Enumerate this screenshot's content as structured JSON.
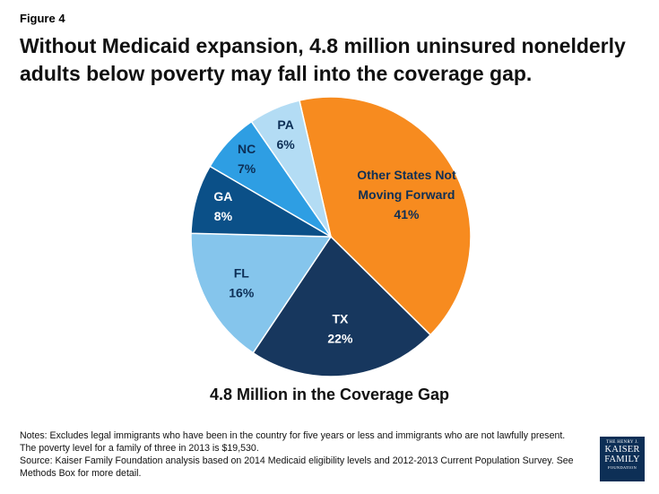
{
  "figure_label": "Figure 4",
  "title": "Without Medicaid expansion, 4.8 million uninsured nonelderly adults below poverty may fall into the coverage gap.",
  "subtitle": "4.8 Million in the Coverage Gap",
  "notes": {
    "line1": "Notes: Excludes legal immigrants who have been in the country for five years or less and immigrants who are not lawfully present.",
    "line2": "The poverty level for a family of three in 2013 is $19,530.",
    "line3": "Source: Kaiser Family Foundation analysis based on 2014 Medicaid eligibility levels and 2012-2013 Current Population Survey. See",
    "line4": "Methods Box for more detail."
  },
  "logo": {
    "line1": "THE HENRY J.",
    "line2": "KAISER",
    "line3": "FAMILY",
    "line4": "FOUNDATION"
  },
  "chart_data": {
    "type": "pie",
    "title": "4.8 Million in the Coverage Gap",
    "slices": [
      {
        "name": "Other States Not Moving Forward",
        "value": 41,
        "label": "41%",
        "color": "#f78b1f",
        "text_color": "#0d2f56"
      },
      {
        "name": "TX",
        "value": 22,
        "label": "22%",
        "color": "#17375e",
        "text_color": "#ffffff"
      },
      {
        "name": "FL",
        "value": 16,
        "label": "16%",
        "color": "#85c5ec",
        "text_color": "#0d2f56"
      },
      {
        "name": "GA",
        "value": 8,
        "label": "8%",
        "color": "#0b5088",
        "text_color": "#ffffff"
      },
      {
        "name": "NC",
        "value": 7,
        "label": "7%",
        "color": "#2e9ee3",
        "text_color": "#0d2f56"
      },
      {
        "name": "PA",
        "value": 6,
        "label": "6%",
        "color": "#b3dcf4",
        "text_color": "#0d2f56"
      }
    ]
  }
}
